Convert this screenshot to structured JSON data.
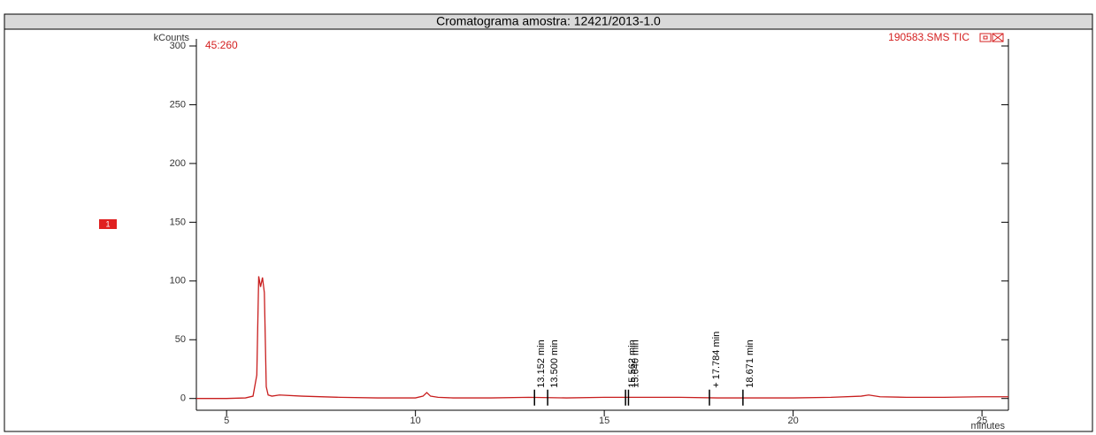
{
  "chart_data": {
    "type": "line",
    "title": "Cromatograma amostra: 12421/2013-1.0",
    "y_label": "kCounts",
    "x_label": "minutes",
    "run_label": "45:260",
    "channel_label": "1",
    "x": [
      4.2,
      5.0,
      5.5,
      5.7,
      5.8,
      5.85,
      5.9,
      5.95,
      6.0,
      6.05,
      6.1,
      6.2,
      6.4,
      7,
      8,
      9,
      10,
      10.2,
      10.3,
      10.4,
      10.6,
      11,
      12,
      13,
      14,
      15,
      16,
      17,
      18,
      19,
      20,
      21,
      21.8,
      22,
      22.3,
      23,
      24,
      25,
      25.7
    ],
    "series": [
      {
        "name": "190583.SMS TIC",
        "color": "#c81e1e",
        "values": [
          0,
          0,
          0.5,
          2,
          20,
          104,
          95,
          103,
          90,
          10,
          3,
          2,
          3,
          2,
          1,
          0.5,
          0.5,
          2,
          5,
          2,
          1,
          0.5,
          0.5,
          1,
          0.5,
          1,
          1,
          1,
          0.5,
          0.5,
          0.5,
          1,
          2,
          3,
          1.5,
          1,
          1,
          1.5,
          1.5
        ]
      }
    ],
    "peaks": [
      {
        "time": 13.152,
        "label": "13.152 min"
      },
      {
        "time": 13.5,
        "label": "13.500 min"
      },
      {
        "time": 15.562,
        "label": "15.562 min"
      },
      {
        "time": 15.64,
        "label": "15.640 min"
      },
      {
        "time": 17.784,
        "label": "+ 17.784 min"
      },
      {
        "time": 18.671,
        "label": "18.671 min"
      }
    ],
    "xlim": [
      4.2,
      25.7
    ],
    "xticks": [
      5,
      10,
      15,
      20,
      25
    ],
    "ylim": [
      -10,
      300
    ],
    "yticks": [
      0,
      50,
      100,
      150,
      200,
      250,
      300
    ]
  }
}
